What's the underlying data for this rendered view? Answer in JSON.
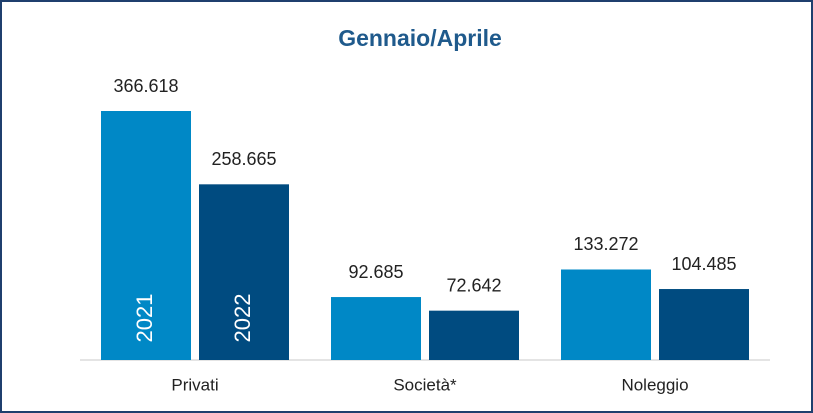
{
  "chart_data": {
    "type": "bar",
    "title": "Gennaio/Aprile",
    "categories": [
      "Privati",
      "Società*",
      "Noleggio"
    ],
    "series": [
      {
        "name": "2021",
        "color": "#0088c6",
        "values": [
          366618,
          92685,
          133272
        ],
        "value_labels": [
          "366.618",
          "92.685",
          "133.272"
        ]
      },
      {
        "name": "2022",
        "color": "#004b80",
        "values": [
          258665,
          72642,
          104485
        ],
        "value_labels": [
          "258.665",
          "72.642",
          "104.485"
        ]
      }
    ]
  }
}
